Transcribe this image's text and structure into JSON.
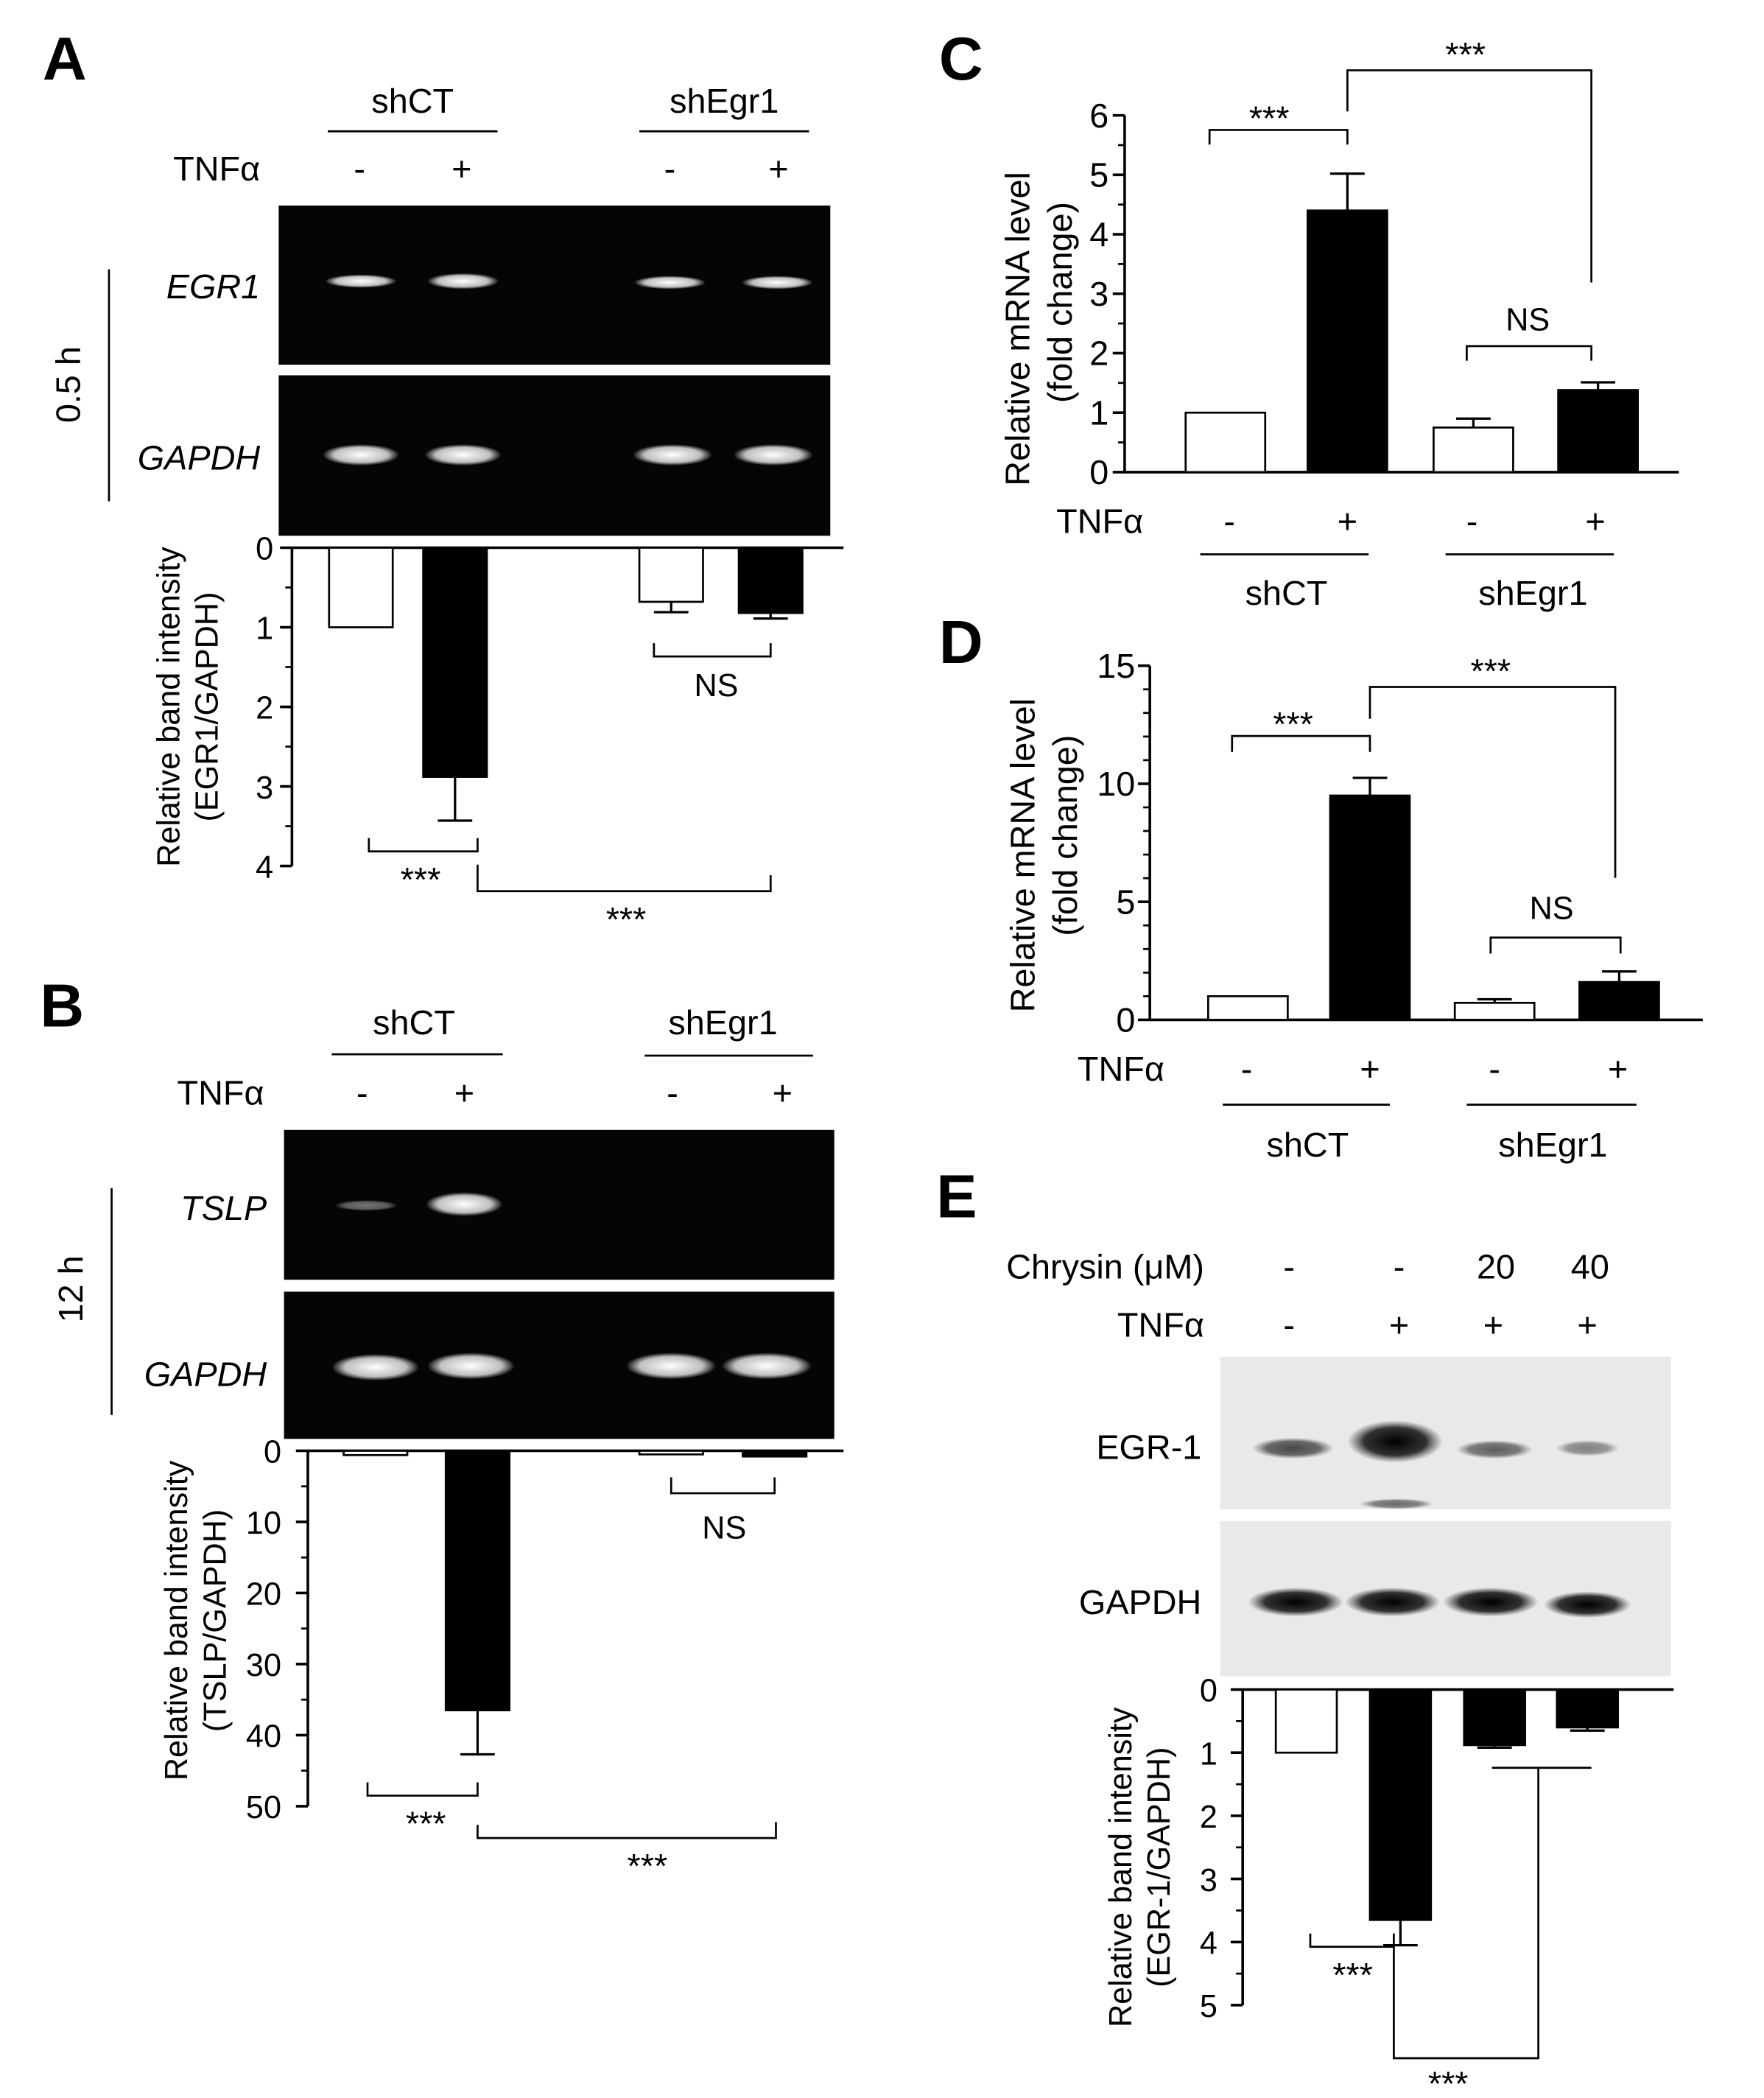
{
  "panels": {
    "A": {
      "letter": "A",
      "group_labels": [
        "shCT",
        "shEgr1"
      ],
      "treatment_label": "TNFα",
      "treatment_signs": [
        "-",
        "+",
        "-",
        "+"
      ],
      "time_label": "0.5 h",
      "gel_rows": [
        {
          "label": "EGR1",
          "italic": true,
          "band_intensity": [
            0.3,
            0.55,
            0.25,
            0.3
          ]
        },
        {
          "label": "GAPDH",
          "italic": true,
          "band_intensity": [
            0.7,
            0.7,
            0.7,
            0.7
          ]
        }
      ],
      "ylabel": [
        "Relative band intensity",
        "(EGR1/GAPDH)"
      ],
      "significance": [
        "***",
        "***",
        "NS"
      ]
    },
    "B": {
      "letter": "B",
      "group_labels": [
        "shCT",
        "shEgr1"
      ],
      "treatment_label": "TNFα",
      "treatment_signs": [
        "-",
        "+",
        "-",
        "+"
      ],
      "time_label": "12 h",
      "gel_rows": [
        {
          "label": "TSLP",
          "italic": true,
          "band_intensity": [
            0.2,
            0.95,
            0,
            0
          ]
        },
        {
          "label": "GAPDH",
          "italic": true,
          "band_intensity": [
            0.85,
            0.85,
            0.85,
            0.85
          ]
        }
      ],
      "ylabel": [
        "Relative band intensity",
        "(TSLP/GAPDH)"
      ],
      "significance": [
        "***",
        "***",
        "NS"
      ]
    },
    "C": {
      "letter": "C",
      "group_labels": [
        "shCT",
        "shEgr1"
      ],
      "treatment_label": "TNFα",
      "treatment_signs": [
        "-",
        "+",
        "-",
        "+"
      ],
      "ylabel": [
        "Relative mRNA level",
        "(fold change)"
      ],
      "significance": [
        "***",
        "***",
        "NS"
      ]
    },
    "D": {
      "letter": "D",
      "group_labels": [
        "shCT",
        "shEgr1"
      ],
      "treatment_label": "TNFα",
      "treatment_signs": [
        "-",
        "+",
        "-",
        "+"
      ],
      "ylabel": [
        "Relative mRNA level",
        "(fold change)"
      ],
      "significance": [
        "***",
        "***",
        "NS"
      ]
    },
    "E": {
      "letter": "E",
      "chrysin_label": "Chrysin (μM)",
      "chrysin_values": [
        "-",
        "-",
        "20",
        "40"
      ],
      "treatment_label": "TNFα",
      "treatment_signs": [
        "-",
        "+",
        "+",
        "+"
      ],
      "blot_rows": [
        {
          "label": "EGR-1",
          "italic": false,
          "band_intensity": [
            0.55,
            1.0,
            0.5,
            0.35
          ]
        },
        {
          "label": "GAPDH",
          "italic": false,
          "band_intensity": [
            0.95,
            0.95,
            0.95,
            0.9
          ]
        }
      ],
      "ylabel": [
        "Relative band intensity",
        "(EGR-1/GAPDH)"
      ],
      "significance": [
        "***",
        "***"
      ]
    }
  },
  "chart_data": [
    {
      "panel": "A",
      "type": "bar",
      "orientation": "inverted",
      "categories": [
        "shCT -",
        "shCT +",
        "shEgr1 -",
        "shEgr1 +"
      ],
      "values": [
        1.0,
        2.88,
        0.68,
        0.82
      ],
      "errors": [
        0,
        0.55,
        0.13,
        0.07
      ],
      "fill": [
        "white",
        "black",
        "white",
        "black"
      ],
      "ylim": [
        0,
        4
      ],
      "yticks": [
        0,
        1,
        2,
        3,
        4
      ]
    },
    {
      "panel": "B",
      "type": "bar",
      "orientation": "inverted",
      "categories": [
        "shCT -",
        "shCT +",
        "shEgr1 -",
        "shEgr1 +"
      ],
      "values": [
        0.6,
        36.5,
        0.5,
        0.8
      ],
      "errors": [
        0,
        6.2,
        0,
        0
      ],
      "fill": [
        "white",
        "black",
        "white",
        "black"
      ],
      "ylim": [
        0,
        50
      ],
      "yticks": [
        0,
        10,
        20,
        30,
        40,
        50
      ]
    },
    {
      "panel": "C",
      "type": "bar",
      "categories": [
        "shCT -",
        "shCT +",
        "shEgr1 -",
        "shEgr1 +"
      ],
      "values": [
        1.0,
        4.4,
        0.75,
        1.38
      ],
      "errors": [
        0,
        0.62,
        0.15,
        0.13
      ],
      "fill": [
        "white",
        "black",
        "white",
        "black"
      ],
      "ylim": [
        0,
        6
      ],
      "yticks": [
        0,
        1,
        2,
        3,
        4,
        5,
        6
      ]
    },
    {
      "panel": "D",
      "type": "bar",
      "categories": [
        "shCT -",
        "shCT +",
        "shEgr1 -",
        "shEgr1 +"
      ],
      "values": [
        1.0,
        9.5,
        0.72,
        1.6
      ],
      "errors": [
        0,
        0.75,
        0.15,
        0.45
      ],
      "fill": [
        "white",
        "black",
        "white",
        "black"
      ],
      "ylim": [
        0,
        15
      ],
      "yticks": [
        0,
        5,
        10,
        15
      ]
    },
    {
      "panel": "E",
      "type": "bar",
      "orientation": "inverted",
      "categories": [
        "- / -",
        "- / +",
        "20 / +",
        "40 / +"
      ],
      "values": [
        1.0,
        3.65,
        0.88,
        0.6
      ],
      "errors": [
        0,
        0.4,
        0.04,
        0.05
      ],
      "fill": [
        "white",
        "black",
        "black",
        "black"
      ],
      "ylim": [
        0,
        5
      ],
      "yticks": [
        0,
        1,
        2,
        3,
        4,
        5
      ]
    }
  ]
}
